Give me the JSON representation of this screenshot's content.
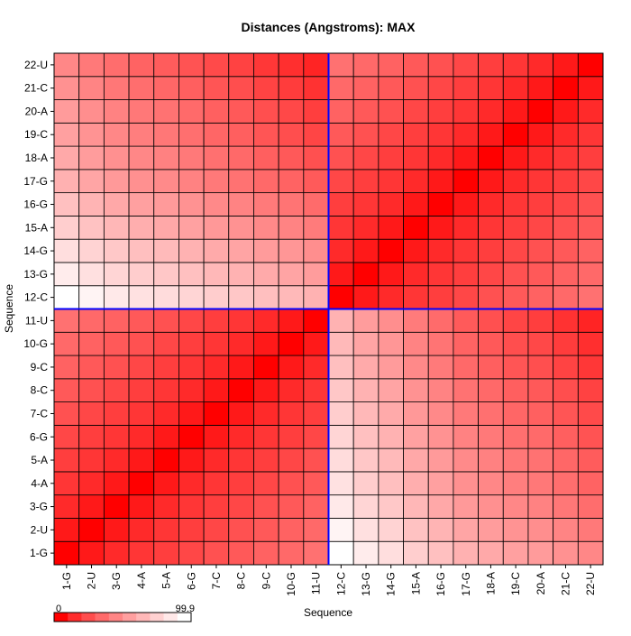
{
  "chart_data": {
    "type": "heatmap",
    "title": "Distances (Angstroms):  MAX",
    "xlabel": "Sequence",
    "ylabel": "Sequence",
    "labels": [
      "1-G",
      "2-U",
      "3-G",
      "4-A",
      "5-A",
      "6-G",
      "7-C",
      "8-C",
      "9-C",
      "10-G",
      "11-U",
      "12-C",
      "13-G",
      "14-G",
      "15-A",
      "16-G",
      "17-G",
      "18-A",
      "19-C",
      "20-A",
      "21-C",
      "22-U"
    ],
    "legend": {
      "min_label": "0",
      "max_label": "99.9",
      "min": 0,
      "max": 99.9,
      "low_color": "#ff0000",
      "high_color": "#ffffff",
      "steps": 10
    },
    "divider_after_index": 11,
    "divider_color": "#0000ff",
    "grid": true,
    "color_scale_max": 99.9,
    "values": [
      [
        0,
        5.5,
        10.6,
        14.4,
        17.0,
        20.3,
        23.9,
        26.7,
        30.4,
        32.8,
        36.3,
        99.9,
        90.5,
        84.2,
        76.4,
        70.0,
        63.3,
        59.6,
        55.7,
        53.5,
        49.3,
        45.0
      ],
      [
        5.5,
        0,
        5.5,
        10.6,
        14.4,
        17.0,
        20.3,
        23.9,
        26.7,
        30.4,
        32.8,
        94.4,
        85.0,
        78.7,
        70.9,
        64.5,
        57.8,
        54.1,
        50.2,
        48.0,
        43.8,
        39.5
      ],
      [
        10.6,
        5.5,
        0,
        5.5,
        10.6,
        14.4,
        17.0,
        20.3,
        23.9,
        26.7,
        30.4,
        89.3,
        79.9,
        73.6,
        65.8,
        59.4,
        52.7,
        49.0,
        45.1,
        42.9,
        38.7,
        34.4
      ],
      [
        14.4,
        10.6,
        5.5,
        0,
        5.5,
        10.6,
        14.4,
        17.0,
        20.3,
        23.9,
        26.7,
        85.5,
        76.1,
        69.8,
        62.0,
        55.6,
        48.9,
        45.2,
        41.3,
        39.1,
        34.9,
        30.6
      ],
      [
        17.0,
        14.4,
        10.6,
        5.5,
        0,
        5.5,
        10.6,
        14.4,
        17.0,
        20.3,
        23.9,
        82.9,
        73.5,
        67.2,
        59.4,
        53.0,
        46.3,
        42.6,
        38.7,
        36.5,
        32.3,
        28.0
      ],
      [
        20.3,
        17.0,
        14.4,
        10.6,
        5.5,
        0,
        5.5,
        10.6,
        14.4,
        17.0,
        20.3,
        79.6,
        70.2,
        63.9,
        56.1,
        49.7,
        43.0,
        39.3,
        35.4,
        33.2,
        29.0,
        24.7
      ],
      [
        23.9,
        20.3,
        17.0,
        14.4,
        10.6,
        5.5,
        0,
        5.5,
        10.6,
        14.4,
        17.0,
        76.0,
        66.6,
        60.3,
        52.5,
        46.1,
        39.4,
        35.7,
        31.8,
        29.6,
        25.4,
        21.1
      ],
      [
        26.7,
        23.9,
        20.3,
        17.0,
        14.4,
        10.6,
        5.5,
        0,
        5.5,
        10.6,
        14.4,
        73.2,
        63.8,
        57.5,
        49.7,
        43.3,
        36.6,
        32.9,
        29.0,
        26.8,
        22.6,
        18.3
      ],
      [
        30.4,
        26.7,
        23.9,
        20.3,
        17.0,
        14.4,
        10.6,
        5.5,
        0,
        5.5,
        10.6,
        69.5,
        60.1,
        53.8,
        46.0,
        39.6,
        32.9,
        29.2,
        25.3,
        23.1,
        18.9,
        14.6
      ],
      [
        32.8,
        30.4,
        26.7,
        23.9,
        20.3,
        17.0,
        14.4,
        10.6,
        5.5,
        0,
        5.5,
        67.1,
        57.7,
        51.4,
        43.6,
        37.2,
        30.5,
        26.8,
        22.9,
        20.7,
        16.5,
        12.2
      ],
      [
        36.3,
        32.8,
        30.4,
        26.7,
        23.9,
        20.3,
        17.0,
        14.4,
        10.6,
        5.5,
        0,
        63.6,
        54.2,
        47.9,
        40.1,
        33.7,
        27.0,
        23.3,
        19.4,
        17.2,
        13.0,
        8.7
      ],
      [
        99.9,
        94.4,
        89.3,
        85.5,
        82.9,
        79.6,
        76.0,
        73.2,
        69.5,
        67.1,
        63.6,
        0,
        5.5,
        10.6,
        14.4,
        17.0,
        20.3,
        23.9,
        26.7,
        30.4,
        32.8,
        36.3
      ],
      [
        90.5,
        85.0,
        79.9,
        76.1,
        73.5,
        70.2,
        66.6,
        63.8,
        60.1,
        57.7,
        54.2,
        5.5,
        0,
        5.5,
        10.6,
        14.4,
        17.0,
        20.3,
        23.9,
        26.7,
        30.4,
        32.8
      ],
      [
        84.2,
        78.7,
        73.6,
        69.8,
        67.2,
        63.9,
        60.3,
        57.5,
        53.8,
        51.4,
        47.9,
        10.6,
        5.5,
        0,
        5.5,
        10.6,
        14.4,
        17.0,
        20.3,
        23.9,
        26.7,
        30.4
      ],
      [
        76.4,
        70.9,
        65.8,
        62.0,
        59.4,
        56.1,
        52.5,
        49.7,
        46.0,
        43.6,
        40.1,
        14.4,
        10.6,
        5.5,
        0,
        5.5,
        10.6,
        14.4,
        17.0,
        20.3,
        23.9,
        26.7
      ],
      [
        70.0,
        64.5,
        59.4,
        55.6,
        53.0,
        49.7,
        46.1,
        43.3,
        39.6,
        37.2,
        33.7,
        17.0,
        14.4,
        10.6,
        5.5,
        0,
        5.5,
        10.6,
        14.4,
        17.0,
        20.3,
        23.9
      ],
      [
        63.3,
        57.8,
        52.7,
        48.9,
        46.3,
        43.0,
        39.4,
        36.6,
        32.9,
        30.5,
        27.0,
        20.3,
        17.0,
        14.4,
        10.6,
        5.5,
        0,
        5.5,
        10.6,
        14.4,
        17.0,
        20.3
      ],
      [
        59.6,
        54.1,
        49.0,
        45.2,
        42.6,
        39.3,
        35.7,
        32.9,
        29.2,
        26.8,
        23.3,
        23.9,
        20.3,
        17.0,
        14.4,
        10.6,
        5.5,
        0,
        5.5,
        10.6,
        14.4,
        17.0
      ],
      [
        55.7,
        50.2,
        45.1,
        41.3,
        38.7,
        35.4,
        31.8,
        29.0,
        25.3,
        22.9,
        19.4,
        26.7,
        23.9,
        20.3,
        17.0,
        14.4,
        10.6,
        5.5,
        0,
        5.5,
        10.6,
        14.4
      ],
      [
        53.5,
        48.0,
        42.9,
        39.1,
        36.5,
        33.2,
        29.6,
        26.8,
        23.1,
        20.7,
        17.2,
        30.4,
        26.7,
        23.9,
        20.3,
        17.0,
        14.4,
        10.6,
        5.5,
        0,
        5.5,
        10.6
      ],
      [
        49.3,
        43.8,
        38.7,
        34.9,
        32.3,
        29.0,
        25.4,
        22.6,
        18.9,
        16.5,
        13.0,
        32.8,
        30.4,
        26.7,
        23.9,
        20.3,
        17.0,
        14.4,
        10.6,
        5.5,
        0,
        5.5
      ],
      [
        45.0,
        39.5,
        34.4,
        30.6,
        28.0,
        24.7,
        21.1,
        18.3,
        14.6,
        12.2,
        8.7,
        36.3,
        32.8,
        30.4,
        26.7,
        23.9,
        20.3,
        17.0,
        14.4,
        10.6,
        5.5,
        0
      ]
    ]
  }
}
